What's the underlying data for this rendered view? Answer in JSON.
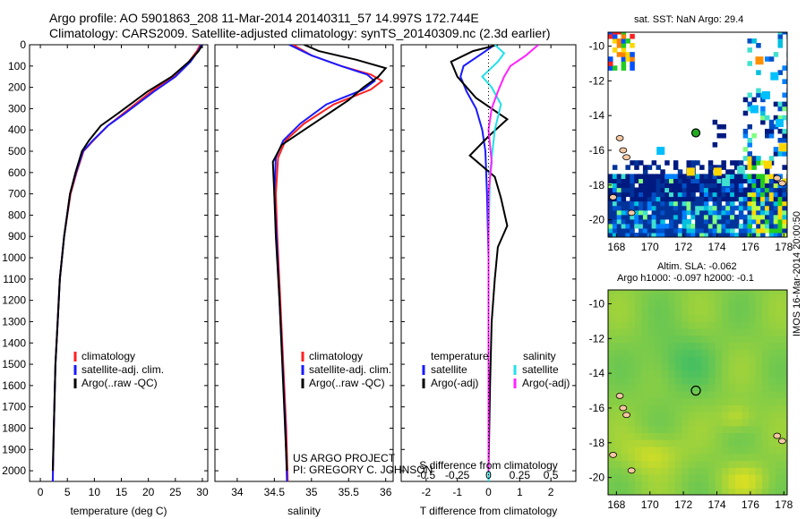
{
  "header": {
    "title_line1": "Argo profile: AO 5901863_208 11-Mar-2014 20140311_57 14.997S 172.744E",
    "title_line2": "Climatology: CARS2009. Satellite-adjusted climatology: synTS_20140309.nc (2.3d earlier)"
  },
  "credits": {
    "line1": "US ARGO PROJECT",
    "line2": "PI: GREGORY C. JOHNSON",
    "stamp": "IMOS 16-Mar-2014 20:00:50"
  },
  "colors": {
    "climatology": "#ff2020",
    "satellite": "#1a1aff",
    "argo": "#000000",
    "satellite_s": "#22e0e8",
    "argo_s": "#ff22ff",
    "land": "#f5c7a3",
    "argo_marker": "#22aa22"
  },
  "chart_data": [
    {
      "type": "line",
      "name": "temperature-profile",
      "xlabel": "temperature (deg C)",
      "ylabel": "",
      "xlim": [
        -2,
        31
      ],
      "ylim": [
        2050,
        0
      ],
      "xticks": [
        0,
        5,
        10,
        15,
        20,
        25,
        30
      ],
      "yticks": [
        0,
        100,
        200,
        300,
        400,
        500,
        600,
        700,
        800,
        900,
        1000,
        1100,
        1200,
        1300,
        1400,
        1500,
        1600,
        1700,
        1800,
        1900,
        2000
      ],
      "legend": [
        "climatology",
        "satellite-adj. clim.",
        "Argo(..raw -QC)"
      ],
      "series": [
        {
          "name": "climatology",
          "color": "#ff2020",
          "x": [
            29.6,
            29.0,
            27.5,
            24.5,
            20.5,
            15.5,
            12.5,
            9.8,
            8.0,
            6.7,
            5.6,
            4.4,
            3.6,
            3.2,
            2.8,
            2.5,
            2.3
          ],
          "y": [
            0,
            30,
            80,
            150,
            220,
            320,
            380,
            450,
            500,
            600,
            700,
            900,
            1100,
            1300,
            1500,
            1800,
            2050
          ]
        },
        {
          "name": "satellite-adj. clim.",
          "color": "#1a1aff",
          "x": [
            29.8,
            29.2,
            27.8,
            25.0,
            21.0,
            15.8,
            12.5,
            9.7,
            7.9,
            6.6,
            5.5,
            4.4,
            3.6,
            3.2,
            2.8,
            2.5,
            2.3
          ],
          "y": [
            0,
            30,
            80,
            150,
            220,
            320,
            380,
            450,
            500,
            600,
            700,
            900,
            1100,
            1300,
            1500,
            1800,
            2050
          ]
        },
        {
          "name": "Argo(..raw -QC)",
          "color": "#000000",
          "x": [
            29.9,
            29.3,
            27.5,
            24.3,
            19.8,
            14.5,
            11.2,
            9.0,
            7.7,
            6.5,
            5.5,
            4.4,
            3.6,
            3.2,
            2.8,
            2.5,
            2.3
          ],
          "y": [
            5,
            30,
            80,
            150,
            220,
            320,
            380,
            450,
            500,
            600,
            700,
            900,
            1100,
            1300,
            1500,
            1800,
            2000
          ]
        }
      ]
    },
    {
      "type": "line",
      "name": "salinity-profile",
      "xlabel": "salinity",
      "ylabel": "",
      "xlim": [
        33.7,
        36.1
      ],
      "ylim": [
        2050,
        0
      ],
      "xticks": [
        34,
        34.5,
        35,
        35.5,
        36
      ],
      "legend": [
        "climatology",
        "satellite-adj. clim.",
        "Argo(..raw -QC)"
      ],
      "series": [
        {
          "name": "climatology",
          "color": "#ff2020",
          "x": [
            34.75,
            35.0,
            35.4,
            35.8,
            35.95,
            35.8,
            35.3,
            34.9,
            34.65,
            34.55,
            34.52,
            34.54,
            34.58,
            34.62,
            34.66,
            34.68
          ],
          "y": [
            0,
            50,
            100,
            140,
            170,
            210,
            280,
            370,
            450,
            530,
            700,
            900,
            1200,
            1500,
            1800,
            2050
          ]
        },
        {
          "name": "satellite-adj. clim.",
          "color": "#1a1aff",
          "x": [
            34.7,
            35.0,
            35.4,
            35.75,
            35.85,
            35.7,
            35.2,
            34.85,
            34.62,
            34.52,
            34.5,
            34.53,
            34.57,
            34.61,
            34.65,
            34.67
          ],
          "y": [
            0,
            50,
            100,
            140,
            170,
            210,
            280,
            370,
            450,
            530,
            700,
            900,
            1200,
            1500,
            1800,
            2050
          ]
        },
        {
          "name": "Argo(..raw -QC)",
          "color": "#000000",
          "x": [
            34.9,
            35.1,
            35.6,
            36.0,
            35.9,
            35.7,
            35.5,
            35.2,
            34.9,
            34.6,
            34.48,
            34.5,
            34.52,
            34.57,
            34.62,
            34.67
          ],
          "y": [
            0,
            30,
            70,
            110,
            150,
            200,
            260,
            330,
            400,
            470,
            550,
            700,
            900,
            1200,
            1600,
            2000
          ]
        }
      ]
    },
    {
      "type": "line",
      "name": "difference-profile",
      "xlabel": "T difference from climatology",
      "xlabel_top": "S difference from climatology",
      "xlim": [
        -2.8,
        2.8
      ],
      "ylim": [
        2050,
        0
      ],
      "xticks": [
        -2,
        -1,
        0,
        1,
        2
      ],
      "xticklabels_top": [
        "-0.5",
        "-0.25",
        "0",
        "0.25",
        "0.5"
      ],
      "legend_headers": [
        "temperature",
        "salinity"
      ],
      "legend": [
        "satellite",
        "Argo(-adj)",
        "satellite",
        "Argo(-adj)"
      ],
      "series": [
        {
          "name": "T satellite",
          "color": "#1a1aff",
          "x": [
            0.2,
            -0.3,
            -0.8,
            -0.9,
            -0.7,
            -0.4,
            -0.2,
            -0.1,
            -0.05,
            0.0,
            0.0,
            0.0,
            0.0
          ],
          "y": [
            0,
            50,
            100,
            150,
            220,
            300,
            400,
            500,
            700,
            1000,
            1400,
            1800,
            2050
          ]
        },
        {
          "name": "T Argo(-adj)",
          "color": "#000000",
          "x": [
            0.3,
            -0.5,
            -1.2,
            -1.0,
            -0.4,
            0.6,
            0.0,
            -0.6,
            0.2,
            0.4,
            0.6,
            0.3,
            0.2,
            0.1,
            0.05,
            0.0
          ],
          "y": [
            0,
            30,
            80,
            150,
            250,
            350,
            430,
            520,
            620,
            720,
            850,
            950,
            1100,
            1300,
            1600,
            2000
          ]
        },
        {
          "name": "S satellite",
          "color": "#22e0e8",
          "x": [
            0.2,
            0.5,
            0.3,
            -0.2,
            0.1,
            0.4,
            0.2,
            0.05,
            0.0,
            0.0,
            0.0
          ],
          "y": [
            0,
            40,
            80,
            150,
            200,
            280,
            400,
            600,
            900,
            1400,
            2050
          ]
        },
        {
          "name": "S Argo(-adj)",
          "color": "#ff22ff",
          "x": [
            1.6,
            1.2,
            0.7,
            0.5,
            0.3,
            0.1,
            0.0,
            0.1,
            0.0,
            0.0,
            0.0,
            0.0
          ],
          "y": [
            0,
            50,
            100,
            150,
            220,
            300,
            400,
            550,
            700,
            1000,
            1500,
            2000
          ]
        }
      ]
    },
    {
      "type": "heatmap",
      "name": "sst-map",
      "title": "sat. SST: NaN Argo: 29.4",
      "xlim": [
        167.5,
        178.2
      ],
      "ylim": [
        -21,
        -9.2
      ],
      "xticks": [
        168,
        170,
        172,
        174,
        176,
        178
      ],
      "yticks": [
        -10,
        -12,
        -14,
        -16,
        -18,
        -20
      ],
      "argo_position": {
        "lon": 172.744,
        "lat": -14.997
      }
    },
    {
      "type": "heatmap",
      "name": "sla-map",
      "title_line1": "Altim. SLA: -0.062",
      "title_line2": "Argo h1000: -0.097 h2000: -0.1",
      "xlim": [
        167.5,
        178.2
      ],
      "ylim": [
        -21,
        -9.2
      ],
      "xticks": [
        168,
        170,
        172,
        174,
        176,
        178
      ],
      "yticks": [
        -10,
        -12,
        -14,
        -16,
        -18,
        -20
      ],
      "argo_position": {
        "lon": 172.744,
        "lat": -14.997
      }
    }
  ]
}
